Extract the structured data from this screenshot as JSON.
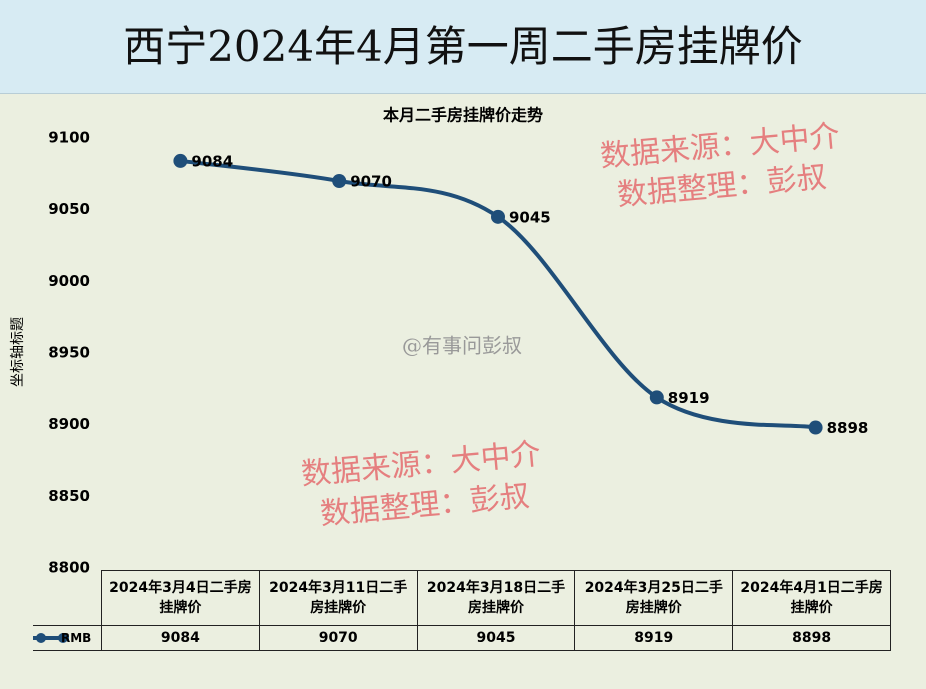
{
  "chart_data": {
    "type": "line",
    "title": "西宁2024年4月第一周二手房挂牌价",
    "subtitle": "本月二手房挂牌价走势",
    "ylabel": "坐标轴标题",
    "categories": [
      "2024年3月4日二手房挂牌价",
      "2024年3月11日二手房挂牌价",
      "2024年3月18日二手房挂牌价",
      "2024年3月25日二手房挂牌价",
      "2024年4月1日二手房挂牌价"
    ],
    "series": [
      {
        "name": "RMB",
        "color": "#1f4e79",
        "values": [
          9084,
          9070,
          9045,
          8919,
          8898
        ]
      }
    ],
    "ylim": [
      8800,
      9100
    ],
    "yticks": [
      8800,
      8850,
      8900,
      8950,
      9000,
      9050,
      9100
    ],
    "grid": false,
    "smooth": true,
    "annotations": [
      "数据来源：大中介",
      "数据整理：彭叔",
      "数据来源：大中介",
      "数据整理：彭叔",
      "@有事问彭叔"
    ]
  }
}
